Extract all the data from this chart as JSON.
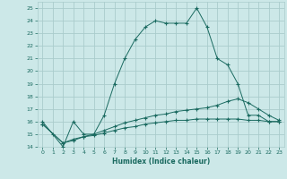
{
  "xlabel": "Humidex (Indice chaleur)",
  "bg_color": "#cce8e8",
  "grid_color": "#aacccc",
  "line_color": "#1a6a60",
  "line1_x": [
    0,
    1,
    2,
    3,
    4,
    5,
    6,
    7,
    8,
    9,
    10,
    11,
    12,
    13,
    14,
    15,
    16,
    17,
    18,
    19,
    20,
    21,
    22,
    23
  ],
  "line1_y": [
    16,
    15,
    14,
    16,
    15,
    15,
    16.5,
    19,
    21,
    22.5,
    23.5,
    24,
    23.8,
    23.8,
    23.8,
    25,
    23.5,
    21,
    20.5,
    19,
    16.5,
    16.5,
    16,
    16
  ],
  "line2_x": [
    0,
    2,
    3,
    4,
    5,
    6,
    7,
    8,
    9,
    10,
    11,
    12,
    13,
    14,
    15,
    16,
    17,
    18,
    19,
    20,
    21,
    22,
    23
  ],
  "line2_y": [
    15.8,
    14.3,
    14.5,
    14.8,
    14.9,
    15.1,
    15.3,
    15.5,
    15.6,
    15.8,
    15.9,
    16.0,
    16.1,
    16.1,
    16.2,
    16.2,
    16.2,
    16.2,
    16.2,
    16.1,
    16.1,
    16.0,
    16.0
  ],
  "line3_x": [
    0,
    2,
    3,
    4,
    5,
    6,
    7,
    8,
    9,
    10,
    11,
    12,
    13,
    14,
    15,
    16,
    17,
    18,
    19,
    20,
    21,
    22,
    23
  ],
  "line3_y": [
    15.8,
    14.3,
    14.6,
    14.8,
    15.0,
    15.3,
    15.6,
    15.9,
    16.1,
    16.3,
    16.5,
    16.6,
    16.8,
    16.9,
    17.0,
    17.1,
    17.3,
    17.6,
    17.8,
    17.5,
    17.0,
    16.5,
    16.1
  ],
  "ylim": [
    14,
    25.5
  ],
  "xlim": [
    -0.5,
    23.5
  ],
  "yticks": [
    14,
    15,
    16,
    17,
    18,
    19,
    20,
    21,
    22,
    23,
    24,
    25
  ],
  "xticks": [
    0,
    1,
    2,
    3,
    4,
    5,
    6,
    7,
    8,
    9,
    10,
    11,
    12,
    13,
    14,
    15,
    16,
    17,
    18,
    19,
    20,
    21,
    22,
    23
  ]
}
